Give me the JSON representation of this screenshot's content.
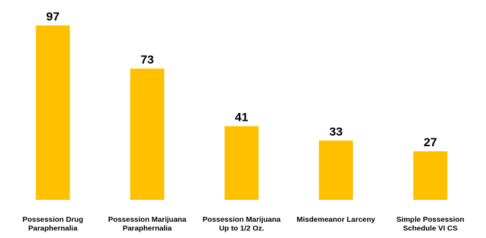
{
  "chart_data": {
    "type": "bar",
    "categories": [
      [
        "Possession Drug",
        "Paraphernalia"
      ],
      [
        "Possession Marijuana",
        "Paraphernalia"
      ],
      [
        "Possession Marijuana",
        "Up to 1/2 Oz."
      ],
      [
        "Misdemeanor Larceny"
      ],
      [
        "Simple Possession",
        "Schedule VI CS"
      ]
    ],
    "values": [
      97,
      73,
      41,
      33,
      27
    ],
    "data_labels": [
      "97",
      "73",
      "41",
      "33",
      "27"
    ],
    "title": "",
    "xlabel": "",
    "ylabel": "",
    "ylim": [
      0,
      100
    ],
    "grid": false,
    "legend": "none",
    "bar_color": "#FFC000"
  }
}
